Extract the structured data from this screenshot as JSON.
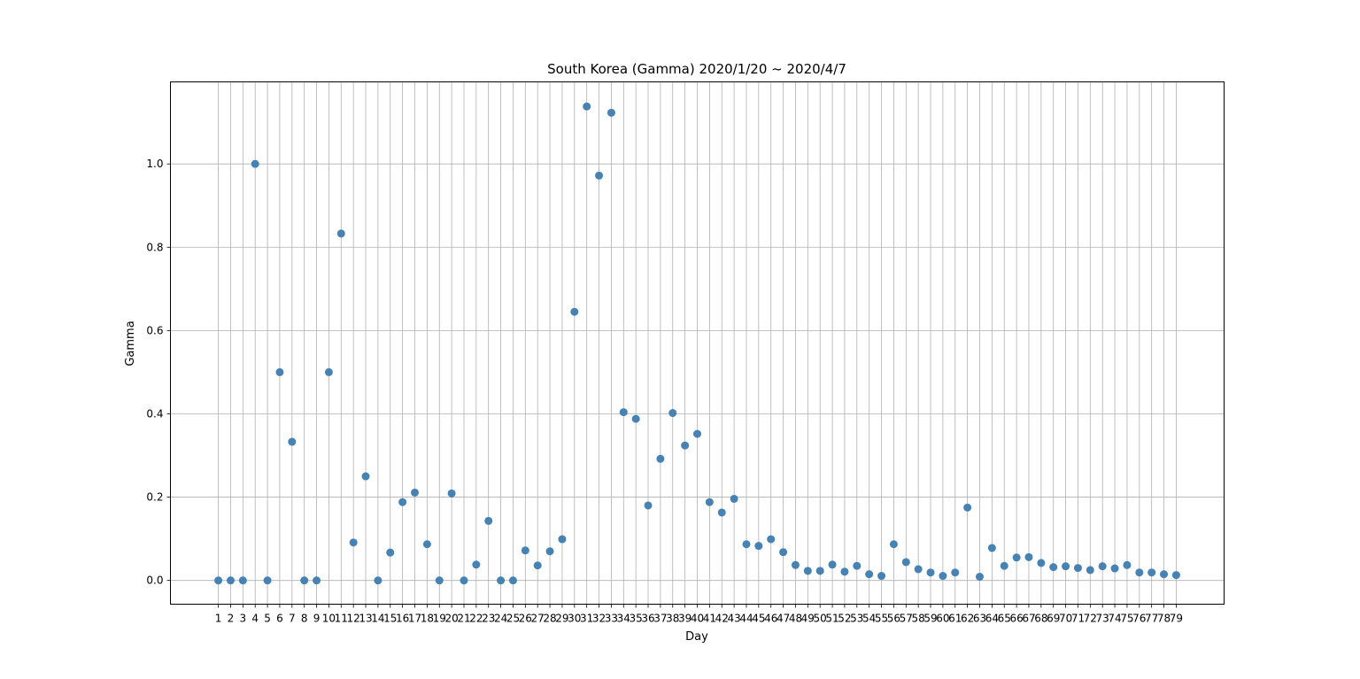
{
  "chart_data": {
    "type": "scatter",
    "title": "South Korea (Gamma) 2020/1/20 ~ 2020/4/7",
    "xlabel": "Day",
    "ylabel": "Gamma",
    "xlim": [
      -2.9,
      82.9
    ],
    "ylim": [
      -0.057,
      1.197
    ],
    "x_ticks": [
      1,
      2,
      3,
      4,
      5,
      6,
      7,
      8,
      9,
      10,
      11,
      12,
      13,
      14,
      15,
      16,
      17,
      18,
      19,
      20,
      21,
      22,
      23,
      24,
      25,
      26,
      27,
      28,
      29,
      30,
      31,
      32,
      33,
      34,
      35,
      36,
      37,
      38,
      39,
      40,
      41,
      42,
      43,
      44,
      45,
      46,
      47,
      48,
      49,
      50,
      51,
      52,
      53,
      54,
      55,
      56,
      57,
      58,
      59,
      60,
      61,
      62,
      63,
      64,
      65,
      66,
      67,
      68,
      69,
      70,
      71,
      72,
      73,
      74,
      75,
      76,
      77,
      78,
      79
    ],
    "y_ticks": [
      0.0,
      0.2,
      0.4,
      0.6,
      0.8,
      1.0
    ],
    "y_tick_labels": [
      "0.0",
      "0.2",
      "0.4",
      "0.6",
      "0.8",
      "1.0"
    ],
    "grid": true,
    "color": "#4682b4",
    "x": [
      1,
      2,
      3,
      4,
      5,
      6,
      7,
      8,
      9,
      10,
      11,
      12,
      13,
      14,
      15,
      16,
      17,
      18,
      19,
      20,
      21,
      22,
      23,
      24,
      25,
      26,
      27,
      28,
      29,
      30,
      31,
      32,
      33,
      34,
      35,
      36,
      37,
      38,
      39,
      40,
      41,
      42,
      43,
      44,
      45,
      46,
      47,
      48,
      49,
      50,
      51,
      52,
      53,
      54,
      55,
      56,
      57,
      58,
      59,
      60,
      61,
      62,
      63,
      64,
      65,
      66,
      67,
      68,
      69,
      70,
      71,
      72,
      73,
      74,
      75,
      76,
      77,
      78,
      79
    ],
    "y": [
      0,
      0,
      0,
      1.0,
      0,
      0.5,
      0.333,
      0,
      0,
      0.5,
      0.833,
      0.091,
      0.25,
      0,
      0.067,
      0.188,
      0.211,
      0.087,
      0,
      0.209,
      0,
      0.038,
      0.143,
      0,
      0,
      0.072,
      0.036,
      0.07,
      0.099,
      0.645,
      1.138,
      0.972,
      1.123,
      0.404,
      0.388,
      0.18,
      0.292,
      0.402,
      0.324,
      0.352,
      0.188,
      0.163,
      0.196,
      0.087,
      0.083,
      0.099,
      0.068,
      0.037,
      0.023,
      0.023,
      0.038,
      0.021,
      0.035,
      0.015,
      0.011,
      0.087,
      0.044,
      0.027,
      0.019,
      0.011,
      0.019,
      0.175,
      0.009,
      0.078,
      0.035,
      0.055,
      0.056,
      0.042,
      0.032,
      0.034,
      0.03,
      0.025,
      0.034,
      0.029,
      0.037,
      0.019,
      0.019,
      0.015,
      0.013
    ]
  }
}
